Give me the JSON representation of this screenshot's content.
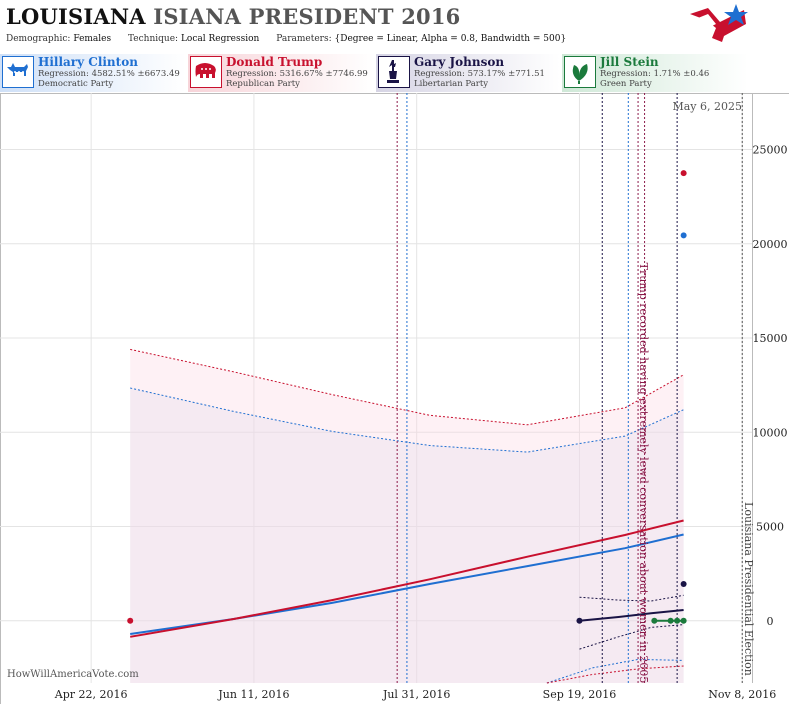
{
  "header": {
    "title_main": "LOUISIANA",
    "title_rest": "ISIANA PRESIDENT 2016",
    "demographic_label": "Demographic:",
    "demographic_value": "Females",
    "technique_label": "Technique:",
    "technique_value": "Local Regression",
    "parameters_label": "Parameters:",
    "parameters_value": "{Degree = Linear, Alpha = 0.8, Bandwidth = 500}"
  },
  "candidates": [
    {
      "name": "Hillary Clinton",
      "regression": "Regression: 4582.51% ±6673.49",
      "party": "Democratic Party",
      "color": "#1f6fd1",
      "icon": "donkey-icon"
    },
    {
      "name": "Donald Trump",
      "regression": "Regression: 5316.67% ±7746.99",
      "party": "Republican Party",
      "color": "#c8102e",
      "icon": "elephant-icon"
    },
    {
      "name": "Gary Johnson",
      "regression": "Regression: 573.17% ±771.51",
      "party": "Libertarian Party",
      "color": "#1a1446",
      "icon": "liberty-statue-icon"
    },
    {
      "name": "Jill Stein",
      "regression": "Regression: 1.71% ±0.46",
      "party": "Green Party",
      "color": "#1b7a3c",
      "icon": "leaf-icon"
    }
  ],
  "chart_data": {
    "type": "line",
    "date_label": "May 6, 2025",
    "watermark": "HowWillAmericaVote.com",
    "x_ticks": [
      "Apr 22, 2016",
      "Jun 11, 2016",
      "Jul 31, 2016",
      "Sep 19, 2016",
      "Nov 8, 2016"
    ],
    "x_range": [
      "2016-03-25",
      "2016-11-11"
    ],
    "y_ticks": [
      0,
      5000,
      10000,
      15000,
      20000,
      25000
    ],
    "y_range": [
      -3300,
      28000
    ],
    "grid": true,
    "annotations": [
      {
        "text": "Trump recorded having extremely lewd conversation about women in 2005",
        "date": "2016-10-07"
      },
      {
        "text": "Louisiana Presidential Election",
        "date": "2016-11-08"
      }
    ],
    "event_lines": [
      {
        "date": "2016-07-25",
        "color": "#8b1a4a"
      },
      {
        "date": "2016-07-28",
        "color": "#1f6fd1"
      },
      {
        "date": "2016-09-26",
        "color": "#1a1446"
      },
      {
        "date": "2016-10-04",
        "color": "#1f6fd1"
      },
      {
        "date": "2016-10-07",
        "color": "#8b1a4a"
      },
      {
        "date": "2016-10-09",
        "color": "#8b1a4a"
      },
      {
        "date": "2016-10-19",
        "color": "#1a1446"
      },
      {
        "date": "2016-11-08",
        "color": "#555555"
      }
    ],
    "series": [
      {
        "name": "Hillary Clinton",
        "color": "#1f6fd1",
        "line": [
          [
            "2016-05-04",
            -700
          ],
          [
            "2016-06-05",
            100
          ],
          [
            "2016-07-05",
            950
          ],
          [
            "2016-08-04",
            1950
          ],
          [
            "2016-09-03",
            2900
          ],
          [
            "2016-10-03",
            3850
          ],
          [
            "2016-10-21",
            4580
          ]
        ],
        "upper": [
          [
            "2016-05-04",
            12350
          ],
          [
            "2016-06-05",
            11100
          ],
          [
            "2016-07-05",
            10050
          ],
          [
            "2016-08-04",
            9300
          ],
          [
            "2016-09-03",
            8950
          ],
          [
            "2016-10-03",
            9800
          ],
          [
            "2016-10-21",
            11200
          ]
        ],
        "lower": [
          [
            "2016-09-09",
            -3300
          ],
          [
            "2016-09-23",
            -2500
          ],
          [
            "2016-10-07",
            -2050
          ],
          [
            "2016-10-21",
            -2100
          ]
        ],
        "points": [
          [
            "2016-10-21",
            20450
          ]
        ]
      },
      {
        "name": "Donald Trump",
        "color": "#c8102e",
        "line": [
          [
            "2016-05-04",
            -850
          ],
          [
            "2016-06-05",
            100
          ],
          [
            "2016-07-05",
            1100
          ],
          [
            "2016-08-04",
            2200
          ],
          [
            "2016-09-03",
            3400
          ],
          [
            "2016-10-03",
            4550
          ],
          [
            "2016-10-21",
            5320
          ]
        ],
        "upper": [
          [
            "2016-05-04",
            14400
          ],
          [
            "2016-06-05",
            13200
          ],
          [
            "2016-07-05",
            12000
          ],
          [
            "2016-08-04",
            10900
          ],
          [
            "2016-09-03",
            10400
          ],
          [
            "2016-10-03",
            11300
          ],
          [
            "2016-10-21",
            13050
          ]
        ],
        "lower": [
          [
            "2016-09-09",
            -3300
          ],
          [
            "2016-09-23",
            -2850
          ],
          [
            "2016-10-07",
            -2550
          ],
          [
            "2016-10-21",
            -2400
          ]
        ],
        "points": [
          [
            "2016-05-04",
            0
          ],
          [
            "2016-10-21",
            23750
          ]
        ]
      },
      {
        "name": "Gary Johnson",
        "color": "#1a1446",
        "line": [
          [
            "2016-09-19",
            0
          ],
          [
            "2016-10-01",
            200
          ],
          [
            "2016-10-11",
            400
          ],
          [
            "2016-10-21",
            573
          ]
        ],
        "upper": [
          [
            "2016-09-19",
            1250
          ],
          [
            "2016-10-01",
            1100
          ],
          [
            "2016-10-11",
            1050
          ],
          [
            "2016-10-21",
            1350
          ]
        ],
        "lower": [
          [
            "2016-09-19",
            -1500
          ],
          [
            "2016-10-01",
            -850
          ],
          [
            "2016-10-11",
            -350
          ],
          [
            "2016-10-21",
            -200
          ]
        ],
        "points": [
          [
            "2016-09-19",
            0
          ],
          [
            "2016-10-21",
            1950
          ]
        ]
      },
      {
        "name": "Jill Stein",
        "color": "#1b7a3c",
        "line": [
          [
            "2016-10-12",
            0
          ],
          [
            "2016-10-21",
            2
          ]
        ],
        "points": [
          [
            "2016-10-12",
            0
          ],
          [
            "2016-10-17",
            0
          ],
          [
            "2016-10-19",
            0
          ],
          [
            "2016-10-21",
            0
          ]
        ]
      }
    ]
  }
}
